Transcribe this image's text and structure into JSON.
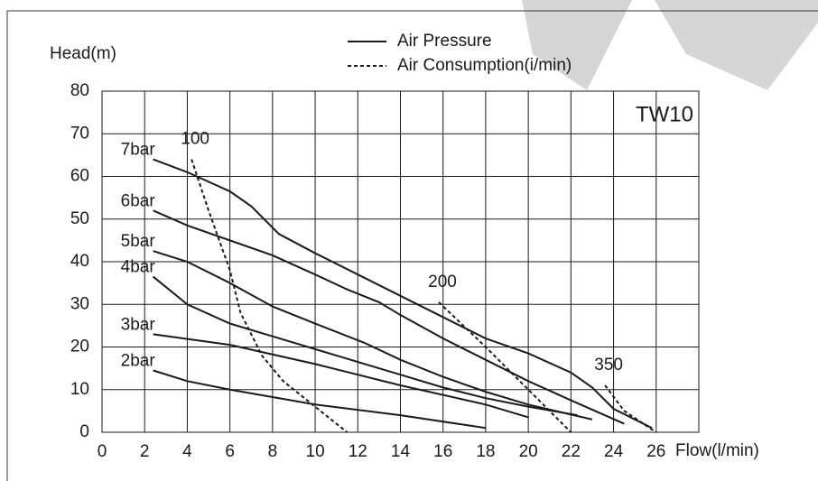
{
  "chart_data": {
    "type": "line",
    "y_label": "Head(m)",
    "x_label": "Flow(l/min)",
    "model": "TW10",
    "xlim": [
      0,
      28
    ],
    "ylim": [
      0,
      80
    ],
    "xticks": [
      0,
      2,
      4,
      6,
      8,
      10,
      12,
      14,
      16,
      18,
      20,
      22,
      24,
      26
    ],
    "yticks": [
      0,
      10,
      20,
      30,
      40,
      50,
      60,
      70,
      80
    ],
    "grid": true,
    "legend": [
      {
        "name": "Air Pressure",
        "dash": "solid"
      },
      {
        "name": "Air Consumption(i/min)",
        "dash": "dashed"
      }
    ],
    "series": [
      {
        "name": "7bar",
        "dash": "solid",
        "color": "#1a1a1a",
        "x": [
          2.4,
          4,
          6,
          7,
          8,
          8.3,
          10,
          12,
          14,
          16,
          18,
          20,
          22,
          23,
          24,
          25.8
        ],
        "values": [
          64,
          61,
          56.5,
          53,
          48,
          46.5,
          42,
          37,
          32,
          27,
          22,
          18.5,
          14,
          10.5,
          5.5,
          1
        ]
      },
      {
        "name": "6bar",
        "dash": "solid",
        "color": "#1a1a1a",
        "x": [
          2.4,
          4,
          6,
          8,
          10,
          11.5,
          13,
          14,
          16,
          18,
          20,
          22,
          24.5
        ],
        "values": [
          52,
          48.5,
          45,
          41.5,
          37,
          33.5,
          30.5,
          27.5,
          22,
          17,
          12,
          7.5,
          2
        ]
      },
      {
        "name": "5bar",
        "dash": "solid",
        "color": "#1a1a1a",
        "x": [
          2.4,
          4,
          6,
          8,
          10,
          12.3,
          14,
          16,
          18,
          20,
          23
        ],
        "values": [
          42.5,
          40,
          35,
          29.5,
          25.5,
          21,
          17,
          13,
          9.5,
          6.5,
          3
        ]
      },
      {
        "name": "4bar",
        "dash": "solid",
        "color": "#1a1a1a",
        "x": [
          2.4,
          4,
          6,
          8,
          10,
          12,
          14,
          16,
          18,
          20,
          22.3
        ],
        "values": [
          36.5,
          30,
          25.5,
          22.5,
          19.5,
          16.5,
          13.5,
          10.5,
          8,
          6,
          4
        ]
      },
      {
        "name": "3bar",
        "dash": "solid",
        "color": "#1a1a1a",
        "x": [
          2.4,
          6,
          10,
          14,
          18,
          20
        ],
        "values": [
          23,
          20.5,
          16,
          11,
          6.5,
          3.5
        ]
      },
      {
        "name": "2bar",
        "dash": "solid",
        "color": "#1a1a1a",
        "x": [
          2.4,
          4,
          6,
          10,
          14,
          18
        ],
        "values": [
          14.5,
          12,
          10,
          6.5,
          4,
          1
        ]
      },
      {
        "name": "100",
        "dash": "dashed",
        "color": "#1a1a1a",
        "x": [
          4.2,
          5,
          6,
          6.5,
          7.5,
          8.5,
          10,
          11.5
        ],
        "values": [
          64,
          52,
          38,
          28,
          18,
          12,
          6,
          0
        ]
      },
      {
        "name": "200",
        "dash": "dashed",
        "color": "#1a1a1a",
        "x": [
          15.8,
          18,
          20,
          22
        ],
        "values": [
          30.5,
          20,
          10,
          0
        ]
      },
      {
        "name": "350",
        "dash": "dashed",
        "color": "#1a1a1a",
        "x": [
          23.6,
          24.5,
          26
        ],
        "values": [
          11,
          5,
          0
        ]
      }
    ]
  }
}
